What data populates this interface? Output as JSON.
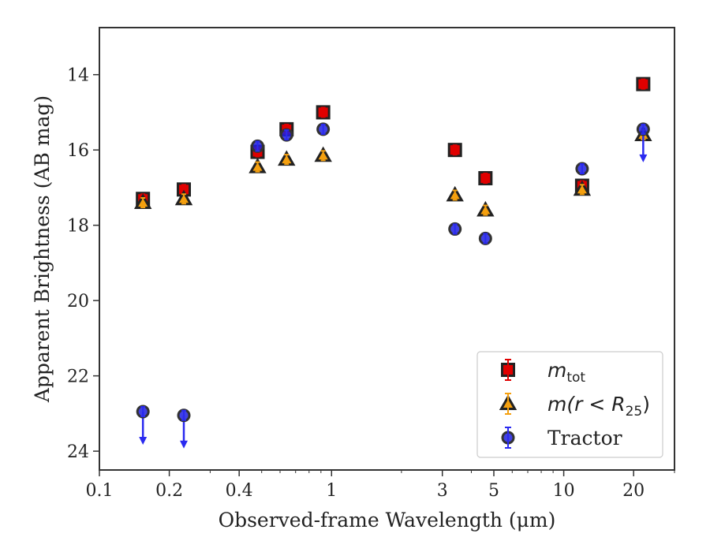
{
  "chart_data": {
    "type": "scatter",
    "xlabel": "Observed-frame Wavelength (μm)",
    "ylabel": "Apparent Brightness (AB mag)",
    "xscale": "log",
    "xlim": [
      0.1,
      30
    ],
    "ylim": [
      24.5,
      12.75
    ],
    "y_inverted": true,
    "grid": false,
    "legend_position": "lower-right",
    "x_ticks": [
      {
        "value": 0.1,
        "label": "0.1"
      },
      {
        "value": 0.2,
        "label": "0.2"
      },
      {
        "value": 0.4,
        "label": "0.4"
      },
      {
        "value": 1,
        "label": "1"
      },
      {
        "value": 3,
        "label": "3"
      },
      {
        "value": 5,
        "label": "5"
      },
      {
        "value": 10,
        "label": "10"
      },
      {
        "value": 20,
        "label": "20"
      }
    ],
    "y_ticks": [
      {
        "value": 14,
        "label": "14"
      },
      {
        "value": 16,
        "label": "16"
      },
      {
        "value": 18,
        "label": "18"
      },
      {
        "value": 20,
        "label": "20"
      },
      {
        "value": 22,
        "label": "22"
      },
      {
        "value": 24,
        "label": "24"
      }
    ],
    "series": [
      {
        "name": "m_tot",
        "legend_main": "m",
        "legend_sub": "tot",
        "marker": "square",
        "color": "#e00000",
        "edge_color": "#222222",
        "error_color": "#e00000",
        "points": [
          {
            "x": 0.154,
            "y": 17.3
          },
          {
            "x": 0.231,
            "y": 17.05
          },
          {
            "x": 0.48,
            "y": 16.05
          },
          {
            "x": 0.64,
            "y": 15.45
          },
          {
            "x": 0.92,
            "y": 15.0
          },
          {
            "x": 3.4,
            "y": 16.0
          },
          {
            "x": 4.6,
            "y": 16.75
          },
          {
            "x": 12.0,
            "y": 16.95
          },
          {
            "x": 22.0,
            "y": 14.25
          }
        ]
      },
      {
        "name": "m(r < R25)",
        "legend_main": "m(r < R",
        "legend_sub": "25",
        "legend_tail": ")",
        "marker": "triangle",
        "color": "#f5a00f",
        "edge_color": "#222222",
        "error_color": "#f5a00f",
        "points": [
          {
            "x": 0.154,
            "y": 17.4
          },
          {
            "x": 0.231,
            "y": 17.3
          },
          {
            "x": 0.48,
            "y": 16.45
          },
          {
            "x": 0.64,
            "y": 16.25
          },
          {
            "x": 0.92,
            "y": 16.15
          },
          {
            "x": 3.4,
            "y": 17.2
          },
          {
            "x": 4.6,
            "y": 17.6
          },
          {
            "x": 12.0,
            "y": 17.05
          },
          {
            "x": 22.0,
            "y": 15.6
          }
        ]
      },
      {
        "name": "Tractor",
        "marker": "circle",
        "color": "#1f1fe0",
        "edge_color": "#333333",
        "error_color": "#2a2af0",
        "points": [
          {
            "x": 0.154,
            "y": 22.95,
            "upper_limit": true
          },
          {
            "x": 0.231,
            "y": 23.05,
            "upper_limit": true
          },
          {
            "x": 0.48,
            "y": 15.9
          },
          {
            "x": 0.64,
            "y": 15.6
          },
          {
            "x": 0.92,
            "y": 15.45
          },
          {
            "x": 3.4,
            "y": 18.1
          },
          {
            "x": 4.6,
            "y": 18.35
          },
          {
            "x": 12.0,
            "y": 16.5
          },
          {
            "x": 22.0,
            "y": 15.45,
            "upper_limit": true
          }
        ]
      }
    ]
  }
}
